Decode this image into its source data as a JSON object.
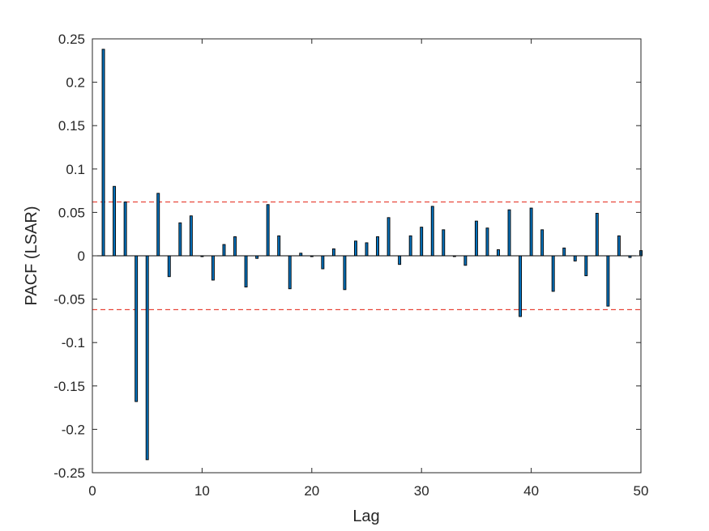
{
  "chart_data": {
    "type": "bar",
    "title": "",
    "xlabel": "Lag",
    "ylabel": "PACF (LSAR)",
    "xlim": [
      0,
      50
    ],
    "ylim": [
      -0.25,
      0.25
    ],
    "x_ticks": [
      0,
      10,
      20,
      30,
      40,
      50
    ],
    "y_ticks": [
      -0.25,
      -0.2,
      -0.15,
      -0.1,
      -0.05,
      0,
      0.05,
      0.1,
      0.15,
      0.2,
      0.25
    ],
    "x_tick_labels": [
      "0",
      "10",
      "20",
      "30",
      "40",
      "50"
    ],
    "y_tick_labels": [
      "-0.25",
      "-0.2",
      "-0.15",
      "-0.1",
      "-0.05",
      "0",
      "0.05",
      "0.1",
      "0.15",
      "0.2",
      "0.25"
    ],
    "grid": false,
    "confidence_bounds": [
      0.062,
      -0.062
    ],
    "colors": {
      "bar_fill": "#0072BD",
      "bar_edge": "#000000",
      "bounds": "#E8483C",
      "axis": "#262626"
    },
    "lags": [
      1,
      2,
      3,
      4,
      5,
      6,
      7,
      8,
      9,
      10,
      11,
      12,
      13,
      14,
      15,
      16,
      17,
      18,
      19,
      20,
      21,
      22,
      23,
      24,
      25,
      26,
      27,
      28,
      29,
      30,
      31,
      32,
      33,
      34,
      35,
      36,
      37,
      38,
      39,
      40,
      41,
      42,
      43,
      44,
      45,
      46,
      47,
      48,
      49,
      50
    ],
    "values": [
      0.238,
      0.08,
      0.062,
      -0.168,
      -0.235,
      0.072,
      -0.024,
      0.038,
      0.046,
      -0.001,
      -0.028,
      0.013,
      0.022,
      -0.036,
      -0.003,
      0.059,
      0.023,
      -0.038,
      0.003,
      -0.001,
      -0.015,
      0.008,
      -0.039,
      0.017,
      0.015,
      0.022,
      0.044,
      -0.01,
      0.023,
      0.033,
      0.057,
      0.03,
      0.0,
      -0.011,
      0.04,
      0.032,
      0.007,
      0.053,
      -0.07,
      0.055,
      0.03,
      -0.041,
      0.009,
      -0.006,
      -0.023,
      0.049,
      -0.058,
      0.023,
      -0.002,
      0.006
    ]
  }
}
